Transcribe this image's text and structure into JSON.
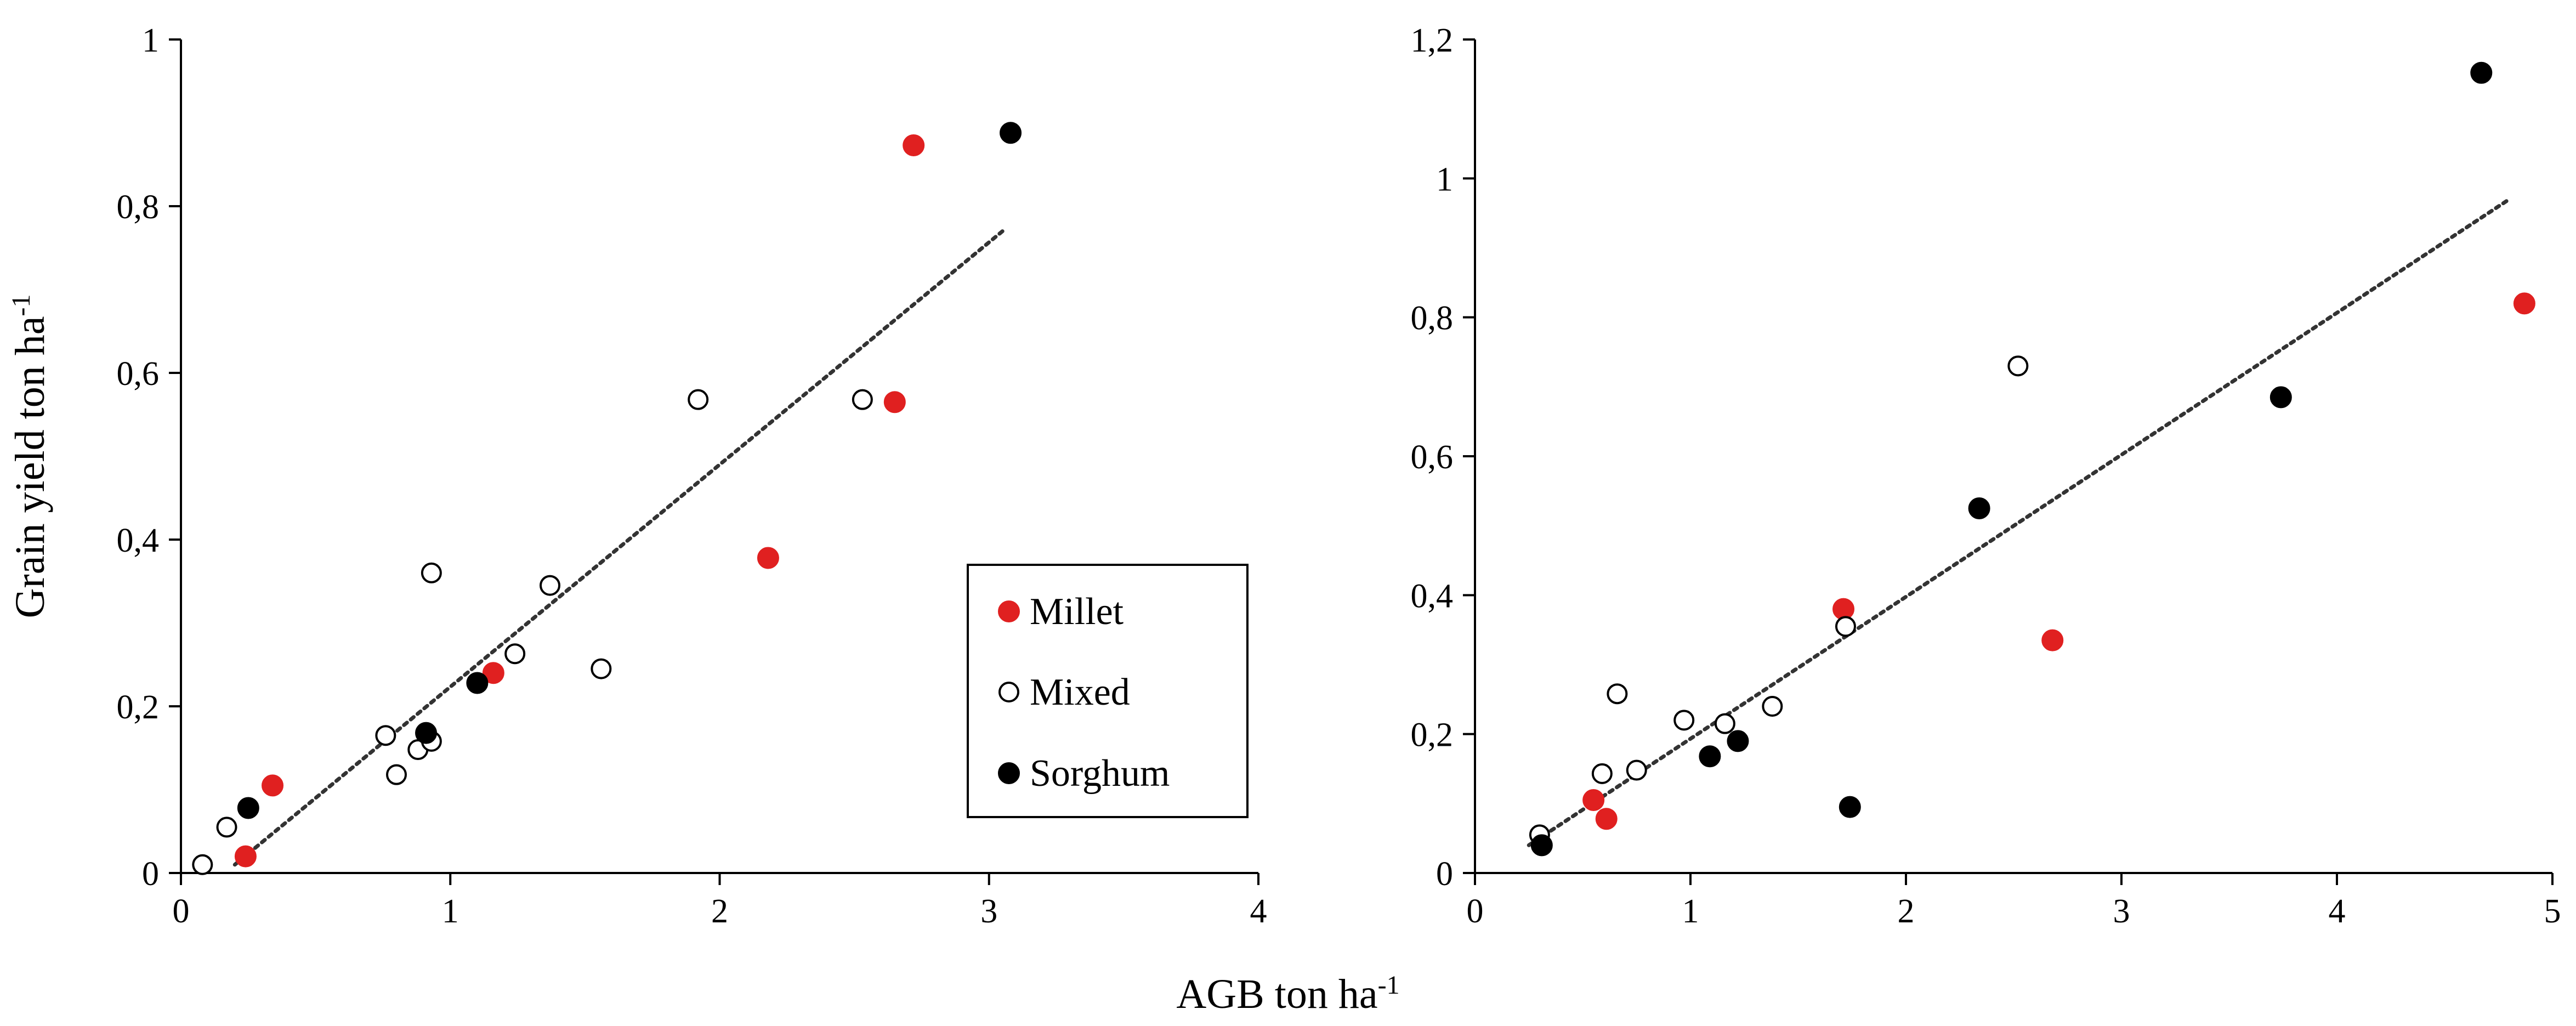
{
  "figure": {
    "shared_xlabel_text": "AGB ton ha",
    "shared_xlabel_sup": "-1",
    "ylabel_text": "Grain yield  ton ha",
    "ylabel_sup": "-1"
  },
  "legend": {
    "placement": "inside-bottom-right of left panel",
    "items": [
      {
        "label": "Millet",
        "marker": "filled",
        "color": "#e02020"
      },
      {
        "label": "Mixed",
        "marker": "open",
        "color": "#000000"
      },
      {
        "label": "Sorghum",
        "marker": "filled",
        "color": "#000000"
      }
    ]
  },
  "chart_data": [
    {
      "type": "scatter",
      "xlim": [
        0,
        4
      ],
      "ylim": [
        0,
        1
      ],
      "xticks": [
        "0",
        "1",
        "2",
        "3",
        "4"
      ],
      "yticks": [
        "0",
        "0,2",
        "0,4",
        "0,6",
        "0,8",
        "1"
      ],
      "grid": false,
      "series": [
        {
          "name": "Millet",
          "color": "#e02020",
          "marker": "filled",
          "points": [
            [
              0.24,
              0.02
            ],
            [
              0.34,
              0.105
            ],
            [
              1.16,
              0.24
            ],
            [
              2.18,
              0.378
            ],
            [
              2.65,
              0.565
            ],
            [
              2.72,
              0.873
            ]
          ]
        },
        {
          "name": "Mixed",
          "color": "#000000",
          "marker": "open",
          "points": [
            [
              0.08,
              0.01
            ],
            [
              0.17,
              0.055
            ],
            [
              0.76,
              0.165
            ],
            [
              0.8,
              0.118
            ],
            [
              0.88,
              0.148
            ],
            [
              0.93,
              0.158
            ],
            [
              0.93,
              0.36
            ],
            [
              1.24,
              0.263
            ],
            [
              1.37,
              0.345
            ],
            [
              1.56,
              0.245
            ],
            [
              1.92,
              0.568
            ],
            [
              2.53,
              0.568
            ]
          ]
        },
        {
          "name": "Sorghum",
          "color": "#000000",
          "marker": "filled",
          "points": [
            [
              0.25,
              0.078
            ],
            [
              0.91,
              0.168
            ],
            [
              1.1,
              0.228
            ],
            [
              3.08,
              0.888
            ]
          ]
        }
      ],
      "trendline": {
        "style": "dotted",
        "x": [
          0.2,
          3.05
        ],
        "y": [
          0.01,
          0.77
        ]
      }
    },
    {
      "type": "scatter",
      "xlim": [
        0,
        5
      ],
      "ylim": [
        0,
        1.2
      ],
      "xticks": [
        "0",
        "1",
        "2",
        "3",
        "4",
        "5"
      ],
      "yticks": [
        "0",
        "0,2",
        "0,4",
        "0,6",
        "0,8",
        "1",
        "1,2"
      ],
      "grid": false,
      "series": [
        {
          "name": "Millet",
          "color": "#e02020",
          "marker": "filled",
          "points": [
            [
              0.55,
              0.105
            ],
            [
              0.61,
              0.078
            ],
            [
              1.71,
              0.38
            ],
            [
              2.68,
              0.335
            ],
            [
              4.87,
              0.82
            ]
          ]
        },
        {
          "name": "Mixed",
          "color": "#000000",
          "marker": "open",
          "points": [
            [
              0.3,
              0.055
            ],
            [
              0.59,
              0.143
            ],
            [
              0.66,
              0.258
            ],
            [
              0.75,
              0.148
            ],
            [
              0.97,
              0.22
            ],
            [
              1.16,
              0.215
            ],
            [
              1.38,
              0.24
            ],
            [
              1.72,
              0.355
            ],
            [
              2.52,
              0.73
            ]
          ]
        },
        {
          "name": "Sorghum",
          "color": "#000000",
          "marker": "filled",
          "points": [
            [
              0.31,
              0.04
            ],
            [
              1.09,
              0.168
            ],
            [
              1.22,
              0.19
            ],
            [
              1.74,
              0.095
            ],
            [
              2.34,
              0.525
            ],
            [
              3.74,
              0.685
            ],
            [
              4.67,
              1.152
            ]
          ]
        }
      ],
      "trendline": {
        "style": "dotted",
        "x": [
          0.25,
          4.8
        ],
        "y": [
          0.04,
          0.97
        ]
      }
    }
  ]
}
